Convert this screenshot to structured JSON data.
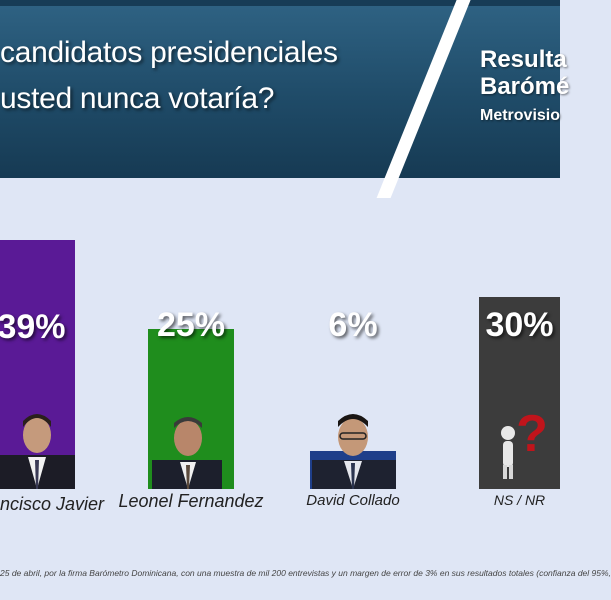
{
  "header": {
    "question_line1": "candidatos presidenciales",
    "question_line2": "usted nunca votaría?",
    "results_line1": "Resulta",
    "results_line2": "Barómé",
    "results_line3": "Metrovisio"
  },
  "chart_data": {
    "type": "bar",
    "categories": [
      "ncisco Javier",
      "Leonel Fernandez",
      "David Collado",
      "NS / NR"
    ],
    "values": [
      39,
      25,
      6,
      30
    ],
    "value_labels": [
      "39%",
      "25%",
      "6%",
      "30%"
    ],
    "colors": [
      "#5a1a96",
      "#1f8d1d",
      "#1f3f8a",
      "#3c3c3c"
    ],
    "ylim": [
      0,
      39
    ],
    "grid": false,
    "legend": "none"
  },
  "footer": {
    "note": "25 de abril, por la firma Barómetro Dominicana, con una muestra de mil 200 entrevistas y un margen de error de 3% en sus resultados totales (confianza del 95%,"
  }
}
